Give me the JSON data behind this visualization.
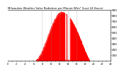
{
  "title": "Milwaukee Weather Solar Radiation per Minute W/m² (Last 24 Hours)",
  "background_color": "#ffffff",
  "fill_color": "#ff0000",
  "line_color": "#ff0000",
  "grid_color": "#888888",
  "num_points": 1440,
  "peak_value": 850,
  "ylim": [
    0,
    900
  ],
  "ytick_values": [
    100,
    200,
    300,
    400,
    500,
    600,
    700,
    800,
    900
  ],
  "xlim": [
    0,
    1440
  ],
  "dashed_lines_x": [
    480,
    600,
    720,
    840,
    960
  ],
  "sunrise_min": 380,
  "sunset_min": 1150,
  "peak_min": 760,
  "gap1_start": 800,
  "gap1_end": 820,
  "gap2_start": 830,
  "gap2_end": 870,
  "noise_seed": 7
}
